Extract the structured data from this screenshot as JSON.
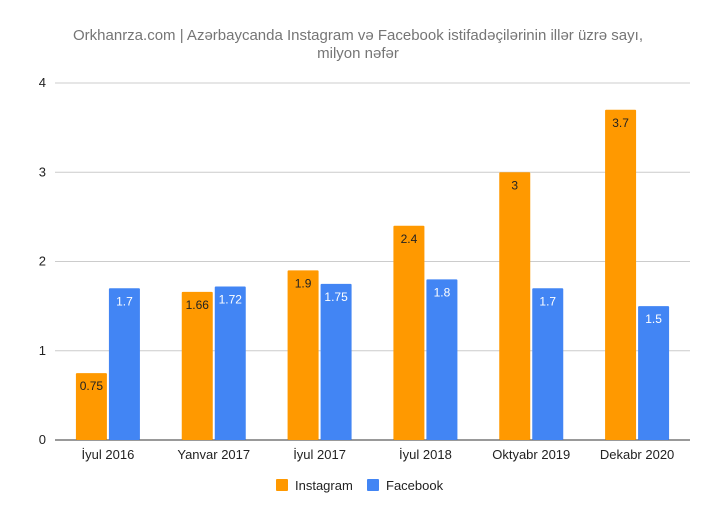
{
  "chart_data": {
    "type": "bar",
    "title_lines": [
      "Orkhanrza.com | Azərbaycanda Instagram və Facebook istifadəçilərinin illər üzrə sayı,",
      "milyon nəfər"
    ],
    "categories": [
      "İyul 2016",
      "Yanvar 2017",
      "İyul 2017",
      "İyul 2018",
      "Oktyabr 2019",
      "Dekabr 2020"
    ],
    "series": [
      {
        "name": "Instagram",
        "color": "#ff9900",
        "label_color": "#222222",
        "values": [
          0.75,
          1.66,
          1.9,
          2.4,
          3,
          3.7
        ],
        "labels": [
          "0.75",
          "1.66",
          "1.9",
          "2.4",
          "3",
          "3.7"
        ]
      },
      {
        "name": "Facebook",
        "color": "#4285f4",
        "label_color": "#ffffff",
        "values": [
          1.7,
          1.72,
          1.75,
          1.8,
          1.7,
          1.5
        ],
        "labels": [
          "1.7",
          "1.72",
          "1.75",
          "1.8",
          "1.7",
          "1.5"
        ]
      }
    ],
    "ylim": [
      0,
      4
    ],
    "yticks": [
      0,
      1,
      2,
      3,
      4
    ],
    "ytick_labels": [
      "0",
      "1",
      "2",
      "3",
      "4"
    ],
    "grid": true,
    "legend_position": "bottom"
  }
}
